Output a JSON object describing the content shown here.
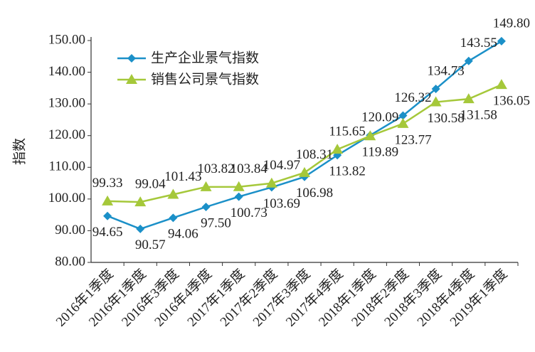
{
  "chart_data": {
    "type": "line",
    "y_label": "指数",
    "categories": [
      "2016年1季度",
      "2016年1季度",
      "2016年3季度",
      "2016年4季度",
      "2017年1季度",
      "2017年2季度",
      "2017年3季度",
      "2017年4季度",
      "2018年1季度",
      "2018年2季度",
      "2018年3季度",
      "2018年4季度",
      "2019年1季度"
    ],
    "series": [
      {
        "name": "生产企业景气指数",
        "color": "#1b90c8",
        "marker": "diamond",
        "values": [
          94.65,
          90.57,
          94.06,
          97.5,
          100.73,
          103.69,
          106.98,
          113.82,
          120.09,
          126.32,
          134.73,
          143.55,
          149.8
        ],
        "value_labels": [
          "94.65",
          "90.57",
          "94.06",
          "97.50",
          "100.73",
          "103.69",
          "106.98",
          "113.82",
          "120.09",
          "126.32",
          "134.73",
          "143.55",
          "149.80"
        ]
      },
      {
        "name": "销售公司景气指数",
        "color": "#a5c83a",
        "marker": "triangle",
        "values": [
          99.33,
          99.04,
          101.43,
          103.82,
          103.84,
          104.97,
          108.31,
          115.65,
          119.89,
          123.77,
          130.58,
          131.58,
          136.05
        ],
        "value_labels": [
          "99.33",
          "99.04",
          "101.43",
          "103.82",
          "103.84",
          "104.97",
          "108.31",
          "115.65",
          "119.89",
          "123.77",
          "130.58",
          "131.58",
          "136.05"
        ]
      }
    ],
    "ylim": [
      80,
      150
    ],
    "yticks": [
      {
        "value": 80,
        "label": "80.00"
      },
      {
        "value": 90,
        "label": "90.00"
      },
      {
        "value": 100,
        "label": "100.00"
      },
      {
        "value": 110,
        "label": "110.00"
      },
      {
        "value": 120,
        "label": "120.00"
      },
      {
        "value": 130,
        "label": "130.00"
      },
      {
        "value": 140,
        "label": "140.00"
      },
      {
        "value": 150,
        "label": "150.00"
      }
    ],
    "legend": "upper left"
  }
}
